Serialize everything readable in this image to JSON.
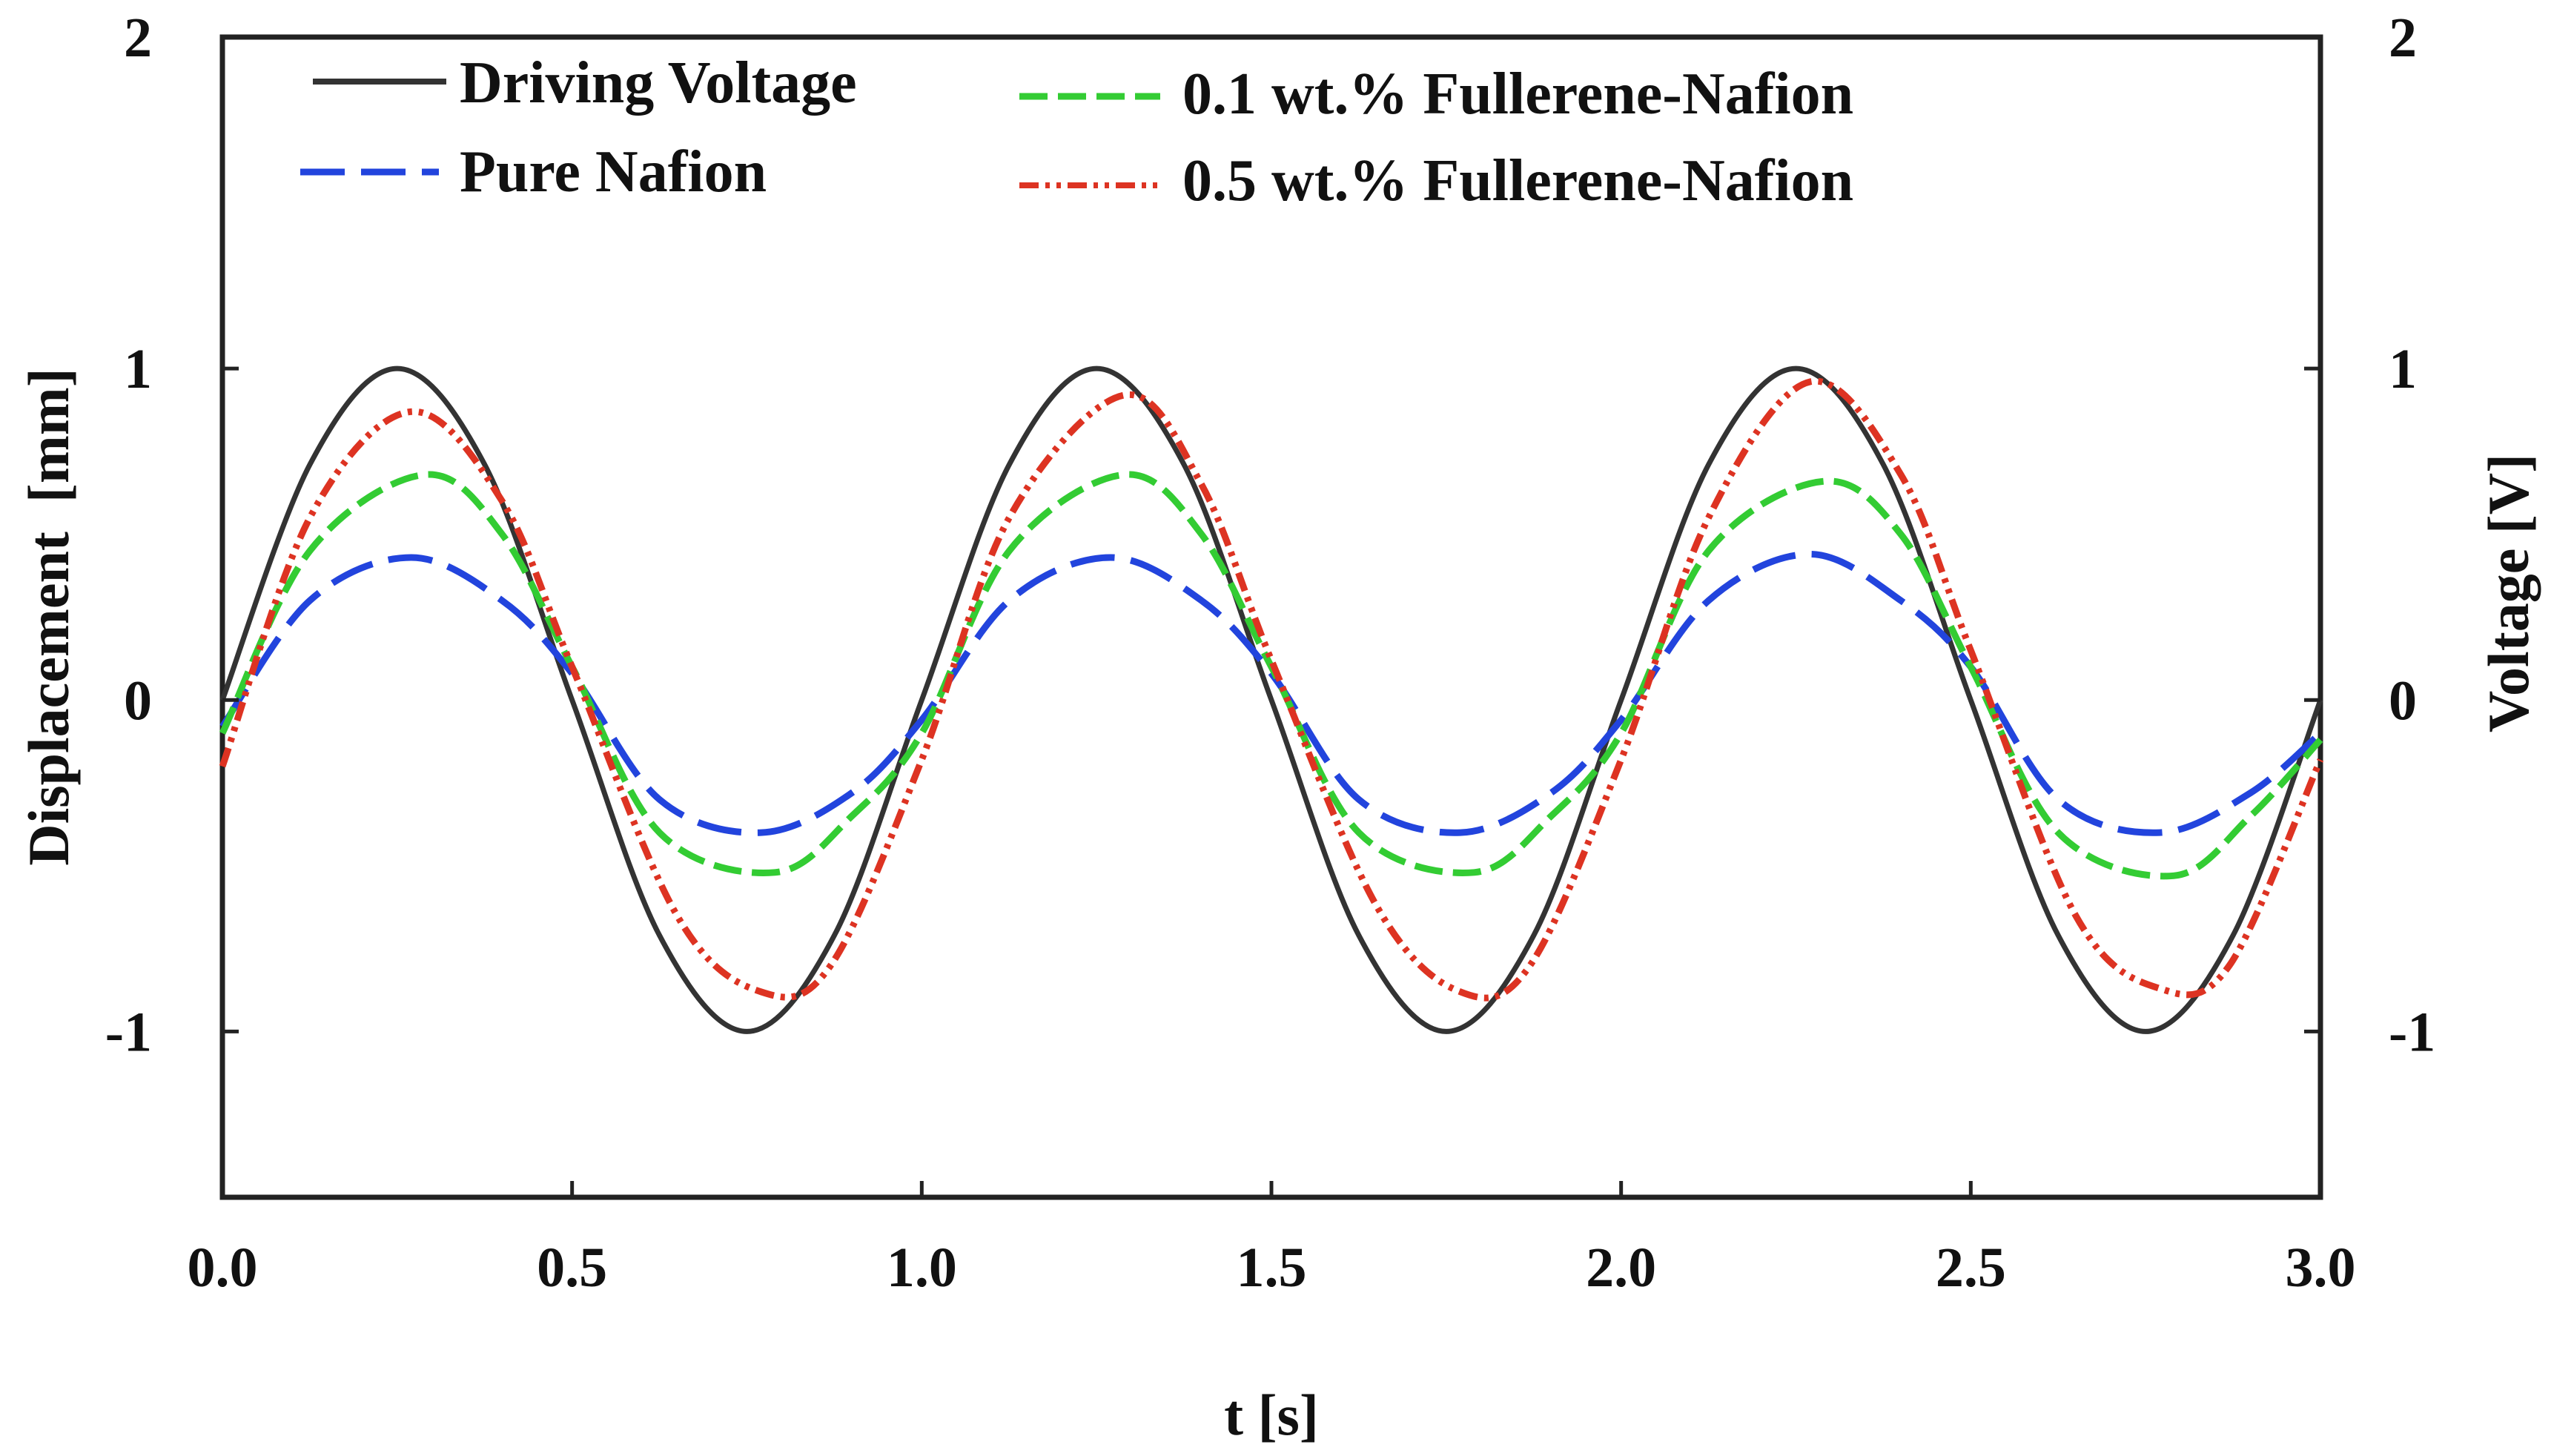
{
  "chart_data": {
    "type": "line",
    "title": "",
    "xlabel": "t [s]",
    "ylabel": "Displacement  [mm]",
    "y2label": "Voltage [V]",
    "xlim": [
      0,
      3
    ],
    "ylim": [
      -1.5,
      2
    ],
    "y2lim": [
      -1.5,
      2
    ],
    "xticks": [
      0.0,
      0.5,
      1.0,
      1.5,
      2.0,
      2.5,
      3.0
    ],
    "xtick_labels": [
      "0.0",
      "0.5",
      "1.0",
      "1.5",
      "2.0",
      "2.5",
      "3.0"
    ],
    "yticks": [
      -1,
      0,
      1,
      2
    ],
    "ytick_labels": [
      "-1",
      "0",
      "1",
      "2"
    ],
    "y2ticks": [
      -1,
      0,
      1,
      2
    ],
    "y2tick_labels": [
      "-1",
      "0",
      "1",
      "2"
    ],
    "grid": false,
    "legend_position": "top",
    "series": [
      {
        "name": "Driving Voltage",
        "color": "#333333",
        "style": "solid",
        "x": [
          0,
          0.125,
          0.25,
          0.375,
          0.5,
          0.625,
          0.75,
          0.875,
          1.0,
          1.125,
          1.25,
          1.375,
          1.5,
          1.625,
          1.75,
          1.875,
          2.0,
          2.125,
          2.25,
          2.375,
          2.5,
          2.625,
          2.75,
          2.875,
          3.0
        ],
        "values": [
          0,
          0.71,
          1.0,
          0.71,
          0,
          -0.71,
          -1.0,
          -0.71,
          0,
          0.71,
          1.0,
          0.71,
          0,
          -0.71,
          -1.0,
          -0.71,
          0,
          0.71,
          1.0,
          0.71,
          0,
          -0.71,
          -1.0,
          -0.71,
          0
        ]
      },
      {
        "name": "Pure Nafion",
        "color": "#2244dd",
        "style": "dashed",
        "x": [
          0,
          0.125,
          0.27,
          0.4,
          0.5,
          0.625,
          0.77,
          0.9,
          1.0,
          1.125,
          1.27,
          1.4,
          1.5,
          1.625,
          1.77,
          1.9,
          2.0,
          2.125,
          2.27,
          2.4,
          2.5,
          2.625,
          2.77,
          2.9,
          3.0
        ],
        "values": [
          -0.08,
          0.3,
          0.43,
          0.3,
          0.08,
          -0.3,
          -0.4,
          -0.28,
          -0.06,
          0.3,
          0.43,
          0.3,
          0.08,
          -0.3,
          -0.4,
          -0.28,
          -0.06,
          0.3,
          0.44,
          0.3,
          0.1,
          -0.3,
          -0.4,
          -0.28,
          -0.1
        ]
      },
      {
        "name": "0.1 wt.% Fullerene-Nafion",
        "color": "#33cc33",
        "style": "dashed",
        "x": [
          0,
          0.125,
          0.29,
          0.4,
          0.5,
          0.625,
          0.79,
          0.9,
          1.0,
          1.125,
          1.29,
          1.4,
          1.5,
          1.625,
          1.79,
          1.9,
          2.0,
          2.125,
          2.29,
          2.4,
          2.5,
          2.625,
          2.79,
          2.9,
          3.0
        ],
        "values": [
          -0.1,
          0.45,
          0.68,
          0.5,
          0.1,
          -0.4,
          -0.52,
          -0.35,
          -0.1,
          0.45,
          0.68,
          0.5,
          0.1,
          -0.4,
          -0.52,
          -0.35,
          -0.1,
          0.45,
          0.66,
          0.5,
          0.1,
          -0.4,
          -0.53,
          -0.35,
          -0.12
        ]
      },
      {
        "name": "0.5 wt.% Fullerene-Nafion",
        "color": "#dd3322",
        "style": "dash-dot-dot",
        "x": [
          0,
          0.125,
          0.27,
          0.4,
          0.5,
          0.65,
          0.77,
          0.87,
          1.0,
          1.125,
          1.29,
          1.4,
          1.5,
          1.65,
          1.77,
          1.87,
          2.0,
          2.125,
          2.27,
          2.4,
          2.5,
          2.65,
          2.77,
          2.87,
          3.0
        ],
        "values": [
          -0.2,
          0.55,
          0.87,
          0.6,
          0.1,
          -0.65,
          -0.88,
          -0.8,
          -0.18,
          0.55,
          0.92,
          0.65,
          0.12,
          -0.62,
          -0.88,
          -0.8,
          -0.18,
          0.55,
          0.96,
          0.68,
          0.15,
          -0.65,
          -0.87,
          -0.8,
          -0.18
        ]
      }
    ]
  }
}
